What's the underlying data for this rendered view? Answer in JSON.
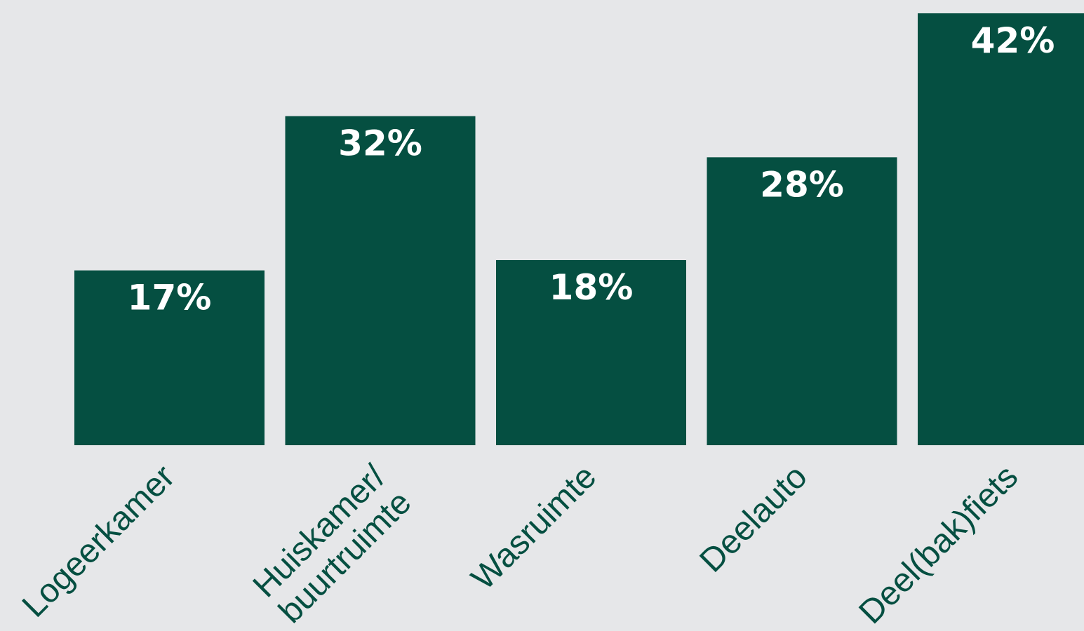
{
  "chart_data": {
    "type": "bar",
    "categories": [
      "Logeerkamer",
      "Huiskamer/ buurtruimte",
      "Wasruimte",
      "Deelauto",
      "Deel(bak)fiets"
    ],
    "category_lines": [
      [
        "Logeerkamer"
      ],
      [
        "Huiskamer/",
        "buurtruimte"
      ],
      [
        "Wasruimte"
      ],
      [
        "Deelauto"
      ],
      [
        "Deel(bak)fiets"
      ]
    ],
    "values": [
      17,
      32,
      18,
      28,
      42
    ],
    "value_labels": [
      "17%",
      "32%",
      "18%",
      "28%",
      "42%"
    ],
    "ylim": [
      0,
      42
    ],
    "grid": false,
    "legend": "none",
    "title": "",
    "xlabel": "",
    "ylabel": "",
    "colors": {
      "background": "#e6e7e9",
      "bar": "#054f41",
      "value_label": "#ffffff",
      "category_label": "#054f41"
    }
  }
}
